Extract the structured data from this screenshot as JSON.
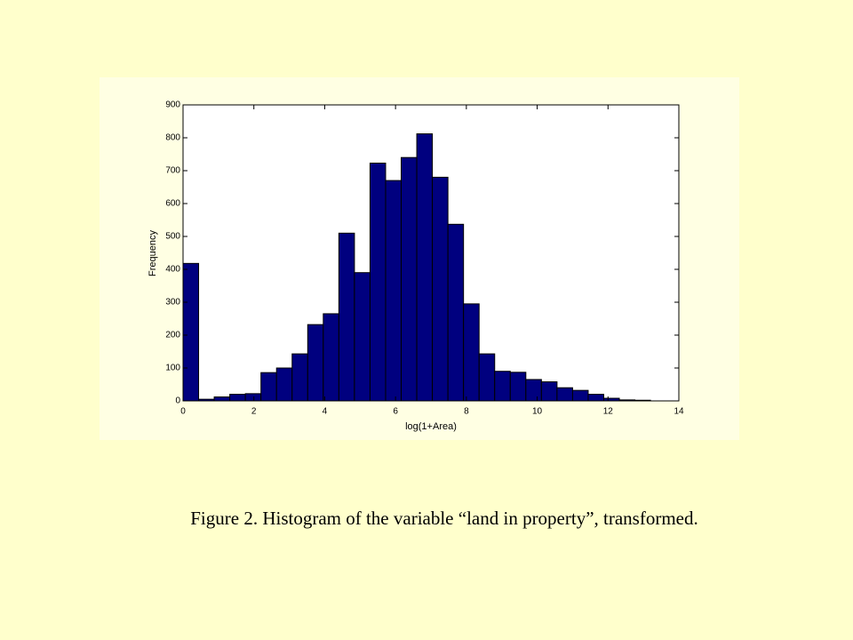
{
  "chart_data": {
    "type": "histogram",
    "xlabel": "log(1+Area)",
    "ylabel": "Frequency",
    "bins": [
      0,
      0.44,
      0.88,
      1.32,
      1.76,
      2.2,
      2.64,
      3.08,
      3.52,
      3.96,
      4.4,
      4.84,
      5.28,
      5.72,
      6.16,
      6.6,
      7.04,
      7.48,
      7.92,
      8.36,
      8.8,
      9.24,
      9.68,
      10.12,
      10.56,
      11,
      11.44,
      11.88,
      12.32,
      12.76,
      13.2
    ],
    "values": [
      418,
      5,
      12,
      20,
      22,
      86,
      100,
      143,
      232,
      265,
      510,
      390,
      723,
      670,
      740,
      812,
      680,
      537,
      295,
      143,
      90,
      87,
      65,
      58,
      40,
      32,
      20,
      8,
      3,
      2
    ],
    "color": "#00007f",
    "xlim": [
      0,
      14
    ],
    "ylim": [
      0,
      900
    ],
    "xticks": [
      0,
      2,
      4,
      6,
      8,
      10,
      12,
      14
    ],
    "yticks": [
      0,
      100,
      200,
      300,
      400,
      500,
      600,
      700,
      800,
      900
    ]
  },
  "caption": "Figure 2. Histogram of the variable “land in property”, transformed."
}
